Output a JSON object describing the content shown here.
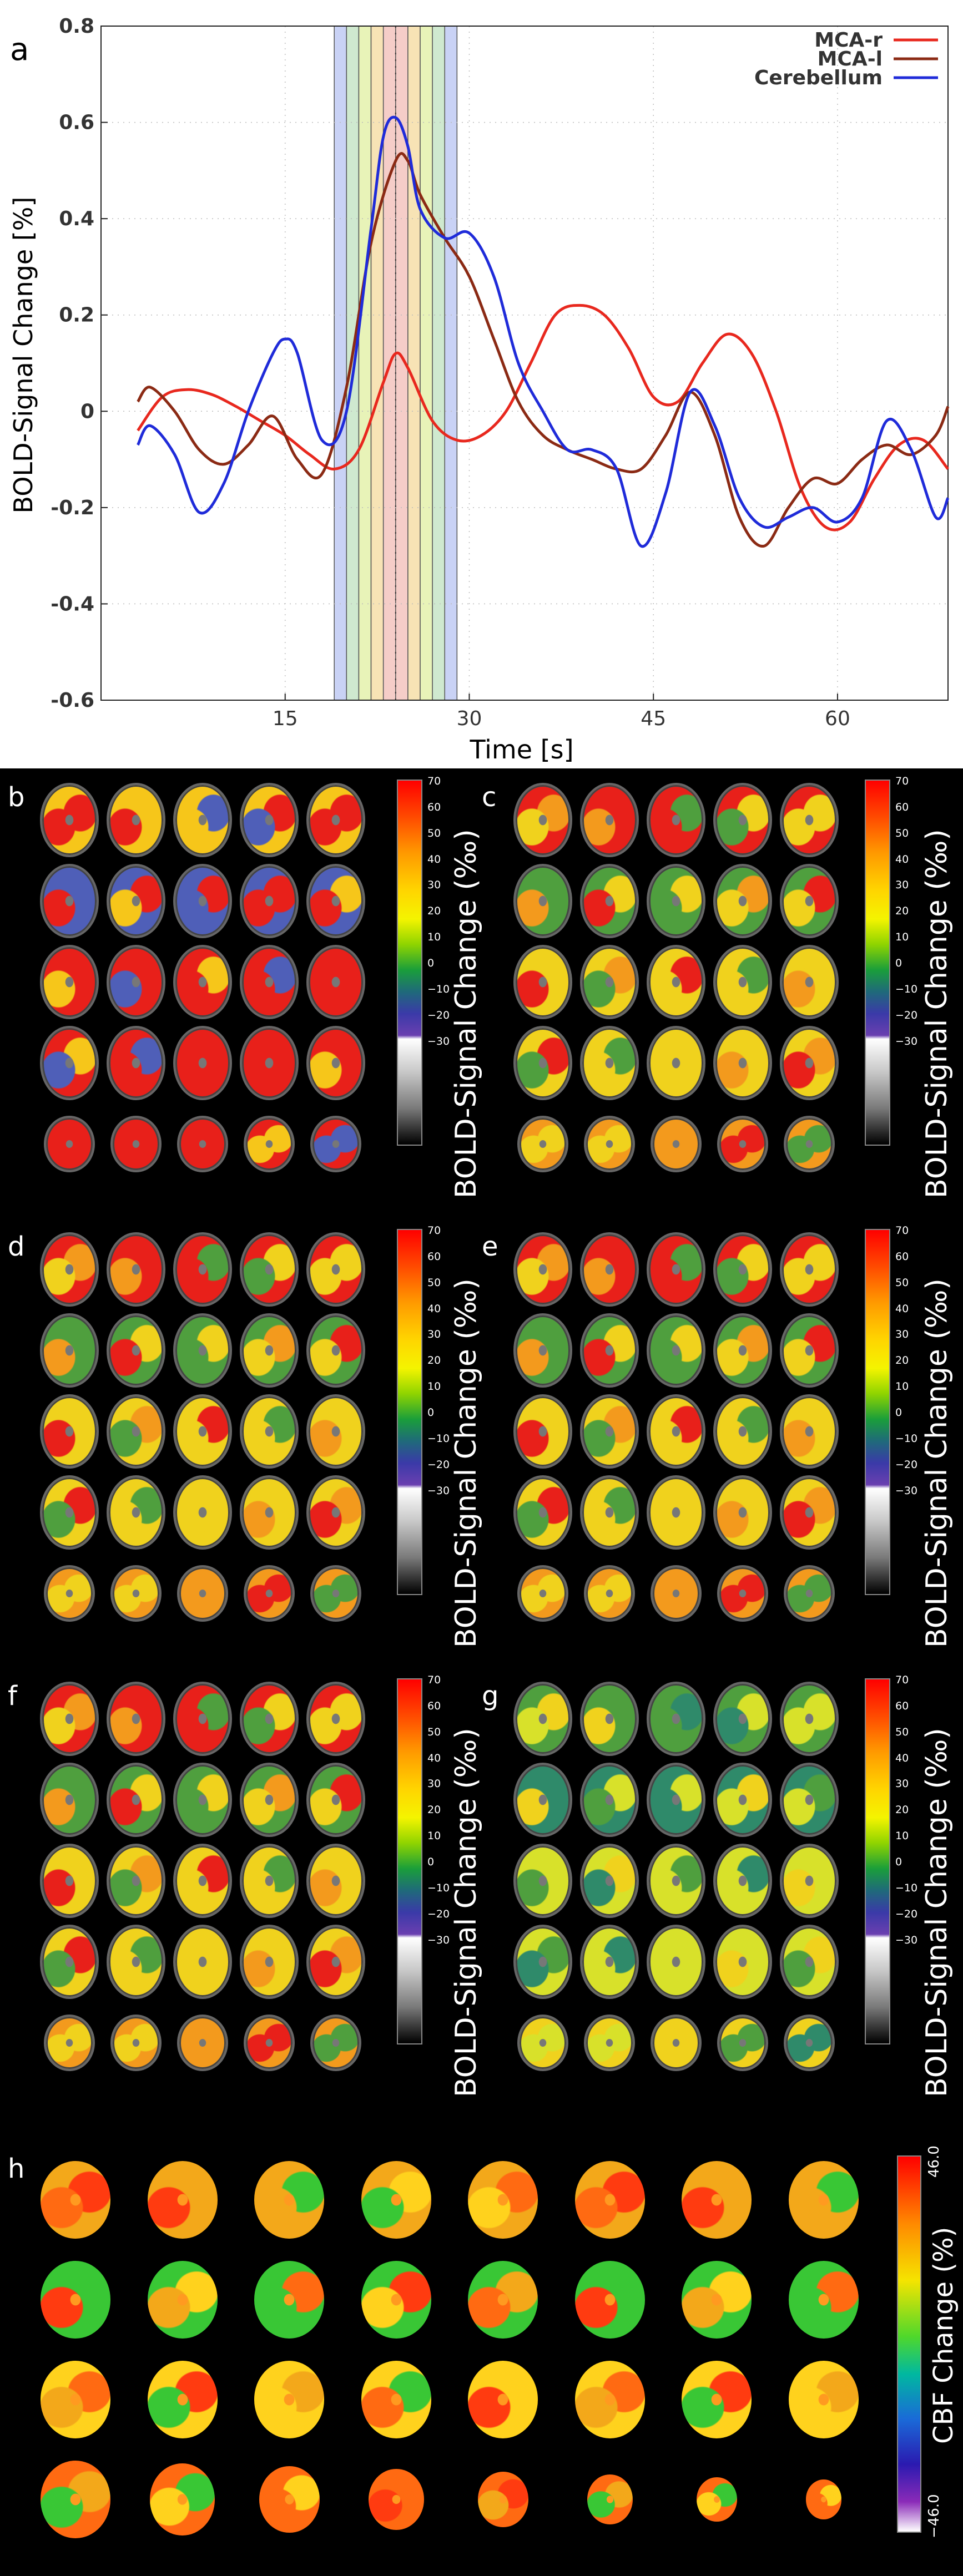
{
  "chart_data": {
    "type": "line",
    "panel_label": "a",
    "xlabel": "Time [s]",
    "ylabel": "BOLD-Signal Change [%]",
    "xlim": [
      0,
      69
    ],
    "ylim": [
      -0.6,
      0.8
    ],
    "xticks": [
      "15",
      "30",
      "45",
      "60"
    ],
    "yticks": [
      "0.8",
      "0.6",
      "0.4",
      "0.2",
      "0",
      "-0.2",
      "-0.4",
      "-0.6"
    ],
    "grid": true,
    "legend_position": "top-right",
    "shaded_bands": {
      "x_start": 19,
      "x_end": 29,
      "band_colors": [
        "#c9d2f5",
        "#cfe9cf",
        "#e8f3b8",
        "#f7e3b5",
        "#f5cdc8",
        "#f5cdc8",
        "#f7e3b5",
        "#e8f3b8",
        "#cfe9cf",
        "#c9d2f5"
      ],
      "center_line_x": 24
    },
    "series": [
      {
        "name": "MCA-r",
        "color": "#e8281e",
        "x": [
          3,
          5,
          7,
          9,
          11,
          13,
          15,
          17,
          19,
          21,
          23,
          24,
          25,
          27,
          29,
          31,
          33,
          35,
          37,
          39,
          41,
          43,
          45,
          47,
          49,
          51,
          53,
          55,
          57,
          59,
          61,
          63,
          65,
          67,
          69
        ],
        "y": [
          -0.04,
          0.03,
          0.045,
          0.035,
          0.01,
          -0.02,
          -0.05,
          -0.09,
          -0.12,
          -0.08,
          0.06,
          0.12,
          0.09,
          -0.02,
          -0.06,
          -0.05,
          0.0,
          0.1,
          0.2,
          0.22,
          0.2,
          0.13,
          0.03,
          0.02,
          0.1,
          0.16,
          0.12,
          0.0,
          -0.16,
          -0.24,
          -0.23,
          -0.14,
          -0.07,
          -0.06,
          -0.12
        ]
      },
      {
        "name": "MCA-l",
        "color": "#8b2a14",
        "x": [
          3,
          4,
          6,
          8,
          10,
          12,
          14,
          16,
          18,
          20,
          22,
          24,
          25,
          26,
          28,
          30,
          32,
          34,
          36,
          38,
          40,
          42,
          44,
          46,
          48,
          50,
          52,
          54,
          56,
          58,
          60,
          62,
          64,
          66,
          68,
          69
        ],
        "y": [
          0.02,
          0.05,
          0.0,
          -0.08,
          -0.11,
          -0.07,
          -0.01,
          -0.1,
          -0.13,
          0.05,
          0.35,
          0.52,
          0.52,
          0.45,
          0.36,
          0.28,
          0.15,
          0.02,
          -0.05,
          -0.08,
          -0.1,
          -0.12,
          -0.12,
          -0.05,
          0.04,
          -0.05,
          -0.22,
          -0.28,
          -0.2,
          -0.14,
          -0.15,
          -0.1,
          -0.07,
          -0.09,
          -0.05,
          0.01
        ]
      },
      {
        "name": "Cerebellum",
        "color": "#1f2bd9",
        "x": [
          3,
          4,
          6,
          8,
          10,
          12,
          14,
          15,
          16,
          18,
          20,
          22,
          23,
          24,
          25,
          26,
          28,
          30,
          32,
          34,
          36,
          38,
          40,
          42,
          44,
          46,
          48,
          50,
          52,
          54,
          56,
          58,
          60,
          62,
          64,
          66,
          68,
          69
        ],
        "y": [
          -0.07,
          -0.03,
          -0.09,
          -0.21,
          -0.15,
          0.0,
          0.12,
          0.15,
          0.12,
          -0.06,
          0.0,
          0.38,
          0.57,
          0.61,
          0.55,
          0.42,
          0.36,
          0.37,
          0.28,
          0.1,
          0.0,
          -0.08,
          -0.08,
          -0.12,
          -0.28,
          -0.17,
          0.04,
          -0.03,
          -0.18,
          -0.24,
          -0.22,
          -0.2,
          -0.23,
          -0.18,
          -0.02,
          -0.08,
          -0.22,
          -0.18
        ]
      }
    ]
  },
  "panels": {
    "b": {
      "letter": "b",
      "colorbar_title": "BOLD-Signal Change (‰)"
    },
    "c": {
      "letter": "c",
      "colorbar_title": "BOLD-Signal Change (‰)"
    },
    "d": {
      "letter": "d",
      "colorbar_title": "BOLD-Signal Change (‰)"
    },
    "e": {
      "letter": "e",
      "colorbar_title": "BOLD-Signal Change (‰)"
    },
    "f": {
      "letter": "f",
      "colorbar_title": "BOLD-Signal Change (‰)"
    },
    "g": {
      "letter": "g",
      "colorbar_title": "BOLD-Signal Change (‰)"
    },
    "h": {
      "letter": "h",
      "colorbar_title": "CBF Change (%)",
      "max_label": "46.0",
      "min_label": "−46.0"
    }
  },
  "bold_colorbar_ticks": [
    "70",
    "60",
    "50",
    "40",
    "30",
    "20",
    "10",
    "0",
    "−10",
    "−20",
    "−30"
  ]
}
